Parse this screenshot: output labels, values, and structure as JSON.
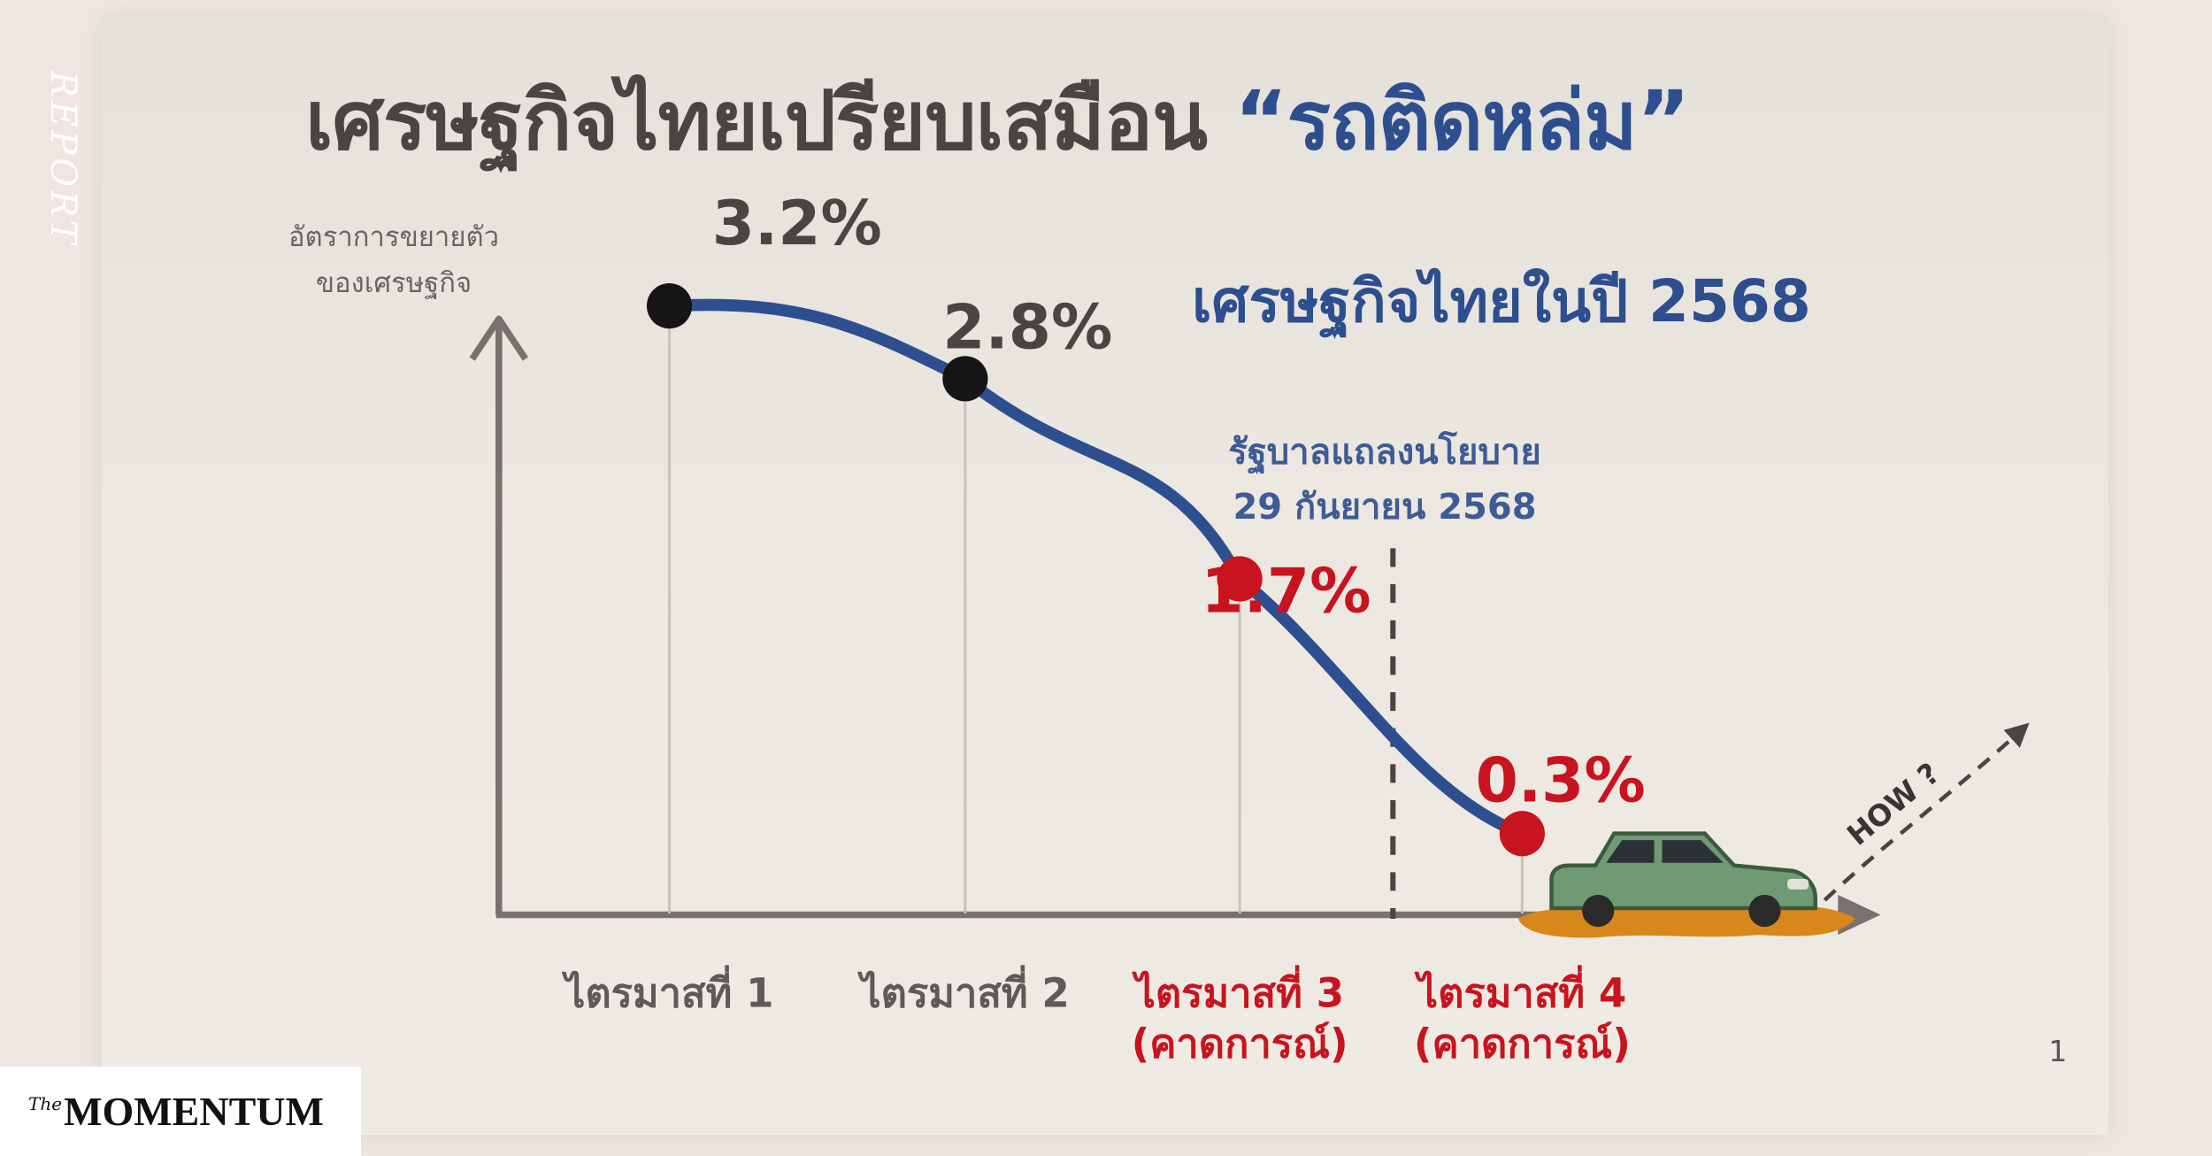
{
  "side_label": "REPORT",
  "brand": {
    "prefix": "The",
    "name": "MOMENTUM"
  },
  "slide": {
    "title_main": "เศรษฐกิจไทยเปรียบเสมือน ",
    "title_accent": "“รถติดหล่ม”",
    "subtitle": "เศรษฐกิจไทยในปี 2568",
    "note_line1": "รัฐบาลแถลงนโยบาย",
    "note_line2": "29 กันยายน 2568",
    "ylabel_line1": "อัตราการขยายตัว",
    "ylabel_line2": "ของเศรษฐกิจ",
    "how_label": "HOW ?",
    "page_number": "1"
  },
  "chart_data": {
    "type": "line",
    "title": "เศรษฐกิจไทยเปรียบเสมือน “รถติดหล่ม”",
    "ylabel": "อัตราการขยายตัวของเศรษฐกิจ",
    "categories": [
      "ไตรมาสที่ 1",
      "ไตรมาสที่ 2",
      "ไตรมาสที่ 3",
      "ไตรมาสที่ 4"
    ],
    "category_sublabels": [
      "",
      "",
      "(คาดการณ์)",
      "(คาดการณ์)"
    ],
    "values": [
      3.2,
      2.8,
      1.7,
      0.3
    ],
    "value_labels": [
      "3.2%",
      "2.8%",
      "1.7%",
      "0.3%"
    ],
    "forecast": [
      false,
      false,
      true,
      true
    ],
    "colors": {
      "actual": "#151515",
      "forecast": "#c8141e",
      "line": "#2e4f8f",
      "axis": "#7a716e"
    },
    "grid": false,
    "legend": "none"
  }
}
